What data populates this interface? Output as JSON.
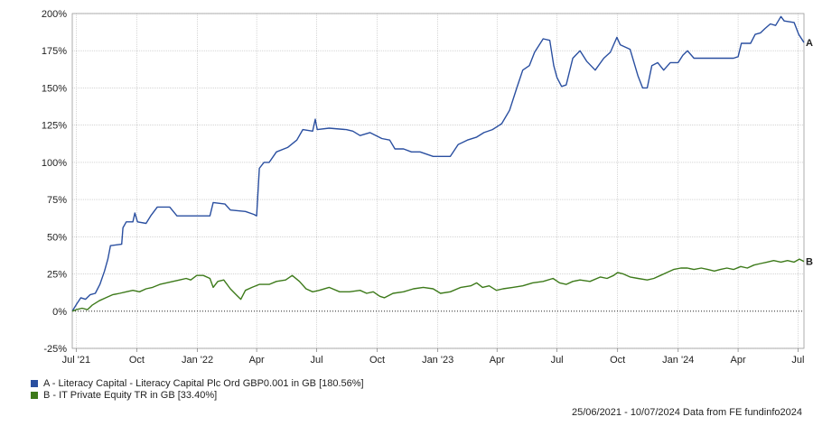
{
  "chart_data": {
    "type": "line",
    "ylim": [
      -25,
      200
    ],
    "y_ticks": [
      -25,
      0,
      25,
      50,
      75,
      100,
      125,
      150,
      175,
      200
    ],
    "y_tick_labels": [
      "-25%",
      "0%",
      "25%",
      "50%",
      "75%",
      "100%",
      "125%",
      "150%",
      "175%",
      "200%"
    ],
    "x_range": [
      "2021-06-25",
      "2024-07-10"
    ],
    "x_ticks": [
      {
        "date": "2021-07-01",
        "label": "Jul '21"
      },
      {
        "date": "2021-10-01",
        "label": "Oct"
      },
      {
        "date": "2022-01-01",
        "label": "Jan '22"
      },
      {
        "date": "2022-04-01",
        "label": "Apr"
      },
      {
        "date": "2022-07-01",
        "label": "Jul"
      },
      {
        "date": "2022-10-01",
        "label": "Oct"
      },
      {
        "date": "2023-01-01",
        "label": "Jan '23"
      },
      {
        "date": "2023-04-01",
        "label": "Apr"
      },
      {
        "date": "2023-07-01",
        "label": "Jul"
      },
      {
        "date": "2023-10-01",
        "label": "Oct"
      },
      {
        "date": "2024-01-01",
        "label": "Jan '24"
      },
      {
        "date": "2024-04-01",
        "label": "Apr"
      },
      {
        "date": "2024-07-01",
        "label": "Jul"
      }
    ],
    "grid": true,
    "zero_line": "dotted",
    "series": [
      {
        "name": "A - Literacy Capital - Literacy Capital Plc Ord GBP0.001 in GB [180.56%]",
        "end_label": "A",
        "color": "#2a4fa0",
        "points": [
          [
            "2021-06-25",
            0
          ],
          [
            "2021-07-02",
            5
          ],
          [
            "2021-07-08",
            9
          ],
          [
            "2021-07-15",
            8
          ],
          [
            "2021-07-22",
            11
          ],
          [
            "2021-07-30",
            12
          ],
          [
            "2021-08-06",
            18
          ],
          [
            "2021-08-13",
            27
          ],
          [
            "2021-08-18",
            35
          ],
          [
            "2021-08-22",
            44
          ],
          [
            "2021-09-08",
            45
          ],
          [
            "2021-09-10",
            56
          ],
          [
            "2021-09-15",
            60
          ],
          [
            "2021-09-25",
            60
          ],
          [
            "2021-09-28",
            66
          ],
          [
            "2021-10-02",
            60
          ],
          [
            "2021-10-15",
            59
          ],
          [
            "2021-10-22",
            64
          ],
          [
            "2021-11-01",
            70
          ],
          [
            "2021-11-20",
            70
          ],
          [
            "2021-12-01",
            64
          ],
          [
            "2021-12-31",
            64
          ],
          [
            "2022-01-20",
            64
          ],
          [
            "2022-01-25",
            73
          ],
          [
            "2022-02-12",
            72
          ],
          [
            "2022-02-20",
            68
          ],
          [
            "2022-03-15",
            67
          ],
          [
            "2022-03-28",
            65
          ],
          [
            "2022-04-01",
            64
          ],
          [
            "2022-04-05",
            96
          ],
          [
            "2022-04-12",
            100
          ],
          [
            "2022-04-20",
            100
          ],
          [
            "2022-05-01",
            107
          ],
          [
            "2022-05-18",
            110
          ],
          [
            "2022-06-01",
            115
          ],
          [
            "2022-06-10",
            122
          ],
          [
            "2022-06-25",
            121
          ],
          [
            "2022-06-29",
            129
          ],
          [
            "2022-07-02",
            122
          ],
          [
            "2022-07-20",
            123
          ],
          [
            "2022-08-15",
            122
          ],
          [
            "2022-08-25",
            121
          ],
          [
            "2022-09-05",
            118
          ],
          [
            "2022-09-20",
            120
          ],
          [
            "2022-10-08",
            116
          ],
          [
            "2022-10-20",
            115
          ],
          [
            "2022-10-28",
            109
          ],
          [
            "2022-11-10",
            109
          ],
          [
            "2022-11-22",
            107
          ],
          [
            "2022-12-05",
            107
          ],
          [
            "2022-12-25",
            104
          ],
          [
            "2023-01-10",
            104
          ],
          [
            "2023-01-20",
            104
          ],
          [
            "2023-02-01",
            112
          ],
          [
            "2023-02-15",
            115
          ],
          [
            "2023-03-01",
            117
          ],
          [
            "2023-03-12",
            120
          ],
          [
            "2023-03-25",
            122
          ],
          [
            "2023-04-01",
            124
          ],
          [
            "2023-04-08",
            126
          ],
          [
            "2023-04-20",
            135
          ],
          [
            "2023-05-01",
            150
          ],
          [
            "2023-05-10",
            162
          ],
          [
            "2023-05-20",
            165
          ],
          [
            "2023-05-28",
            174
          ],
          [
            "2023-06-10",
            183
          ],
          [
            "2023-06-20",
            182
          ],
          [
            "2023-06-26",
            165
          ],
          [
            "2023-07-01",
            157
          ],
          [
            "2023-07-08",
            151
          ],
          [
            "2023-07-15",
            152
          ],
          [
            "2023-07-25",
            170
          ],
          [
            "2023-08-05",
            175
          ],
          [
            "2023-08-15",
            168
          ],
          [
            "2023-08-28",
            162
          ],
          [
            "2023-09-10",
            170
          ],
          [
            "2023-09-20",
            174
          ],
          [
            "2023-09-30",
            184
          ],
          [
            "2023-10-05",
            179
          ],
          [
            "2023-10-20",
            176
          ],
          [
            "2023-11-01",
            158
          ],
          [
            "2023-11-08",
            150
          ],
          [
            "2023-11-15",
            150
          ],
          [
            "2023-11-22",
            165
          ],
          [
            "2023-12-01",
            167
          ],
          [
            "2023-12-10",
            162
          ],
          [
            "2023-12-20",
            167
          ],
          [
            "2024-01-01",
            167
          ],
          [
            "2024-01-08",
            172
          ],
          [
            "2024-01-15",
            175
          ],
          [
            "2024-01-25",
            170
          ],
          [
            "2024-02-10",
            170
          ],
          [
            "2024-03-01",
            170
          ],
          [
            "2024-03-25",
            170
          ],
          [
            "2024-04-01",
            171
          ],
          [
            "2024-04-06",
            180
          ],
          [
            "2024-04-20",
            180
          ],
          [
            "2024-04-27",
            186
          ],
          [
            "2024-05-05",
            187
          ],
          [
            "2024-05-12",
            190
          ],
          [
            "2024-05-20",
            193
          ],
          [
            "2024-05-28",
            192
          ],
          [
            "2024-06-05",
            198
          ],
          [
            "2024-06-10",
            195
          ],
          [
            "2024-06-25",
            194
          ],
          [
            "2024-07-02",
            186
          ],
          [
            "2024-07-10",
            180.56
          ]
        ]
      },
      {
        "name": "B - IT Private Equity TR in GB [33.40%]",
        "end_label": "B",
        "color": "#3d7a1a",
        "points": [
          [
            "2021-06-25",
            0
          ],
          [
            "2021-07-01",
            1
          ],
          [
            "2021-07-10",
            2
          ],
          [
            "2021-07-18",
            1
          ],
          [
            "2021-07-25",
            4
          ],
          [
            "2021-08-05",
            7
          ],
          [
            "2021-08-15",
            9
          ],
          [
            "2021-08-25",
            11
          ],
          [
            "2021-09-05",
            12
          ],
          [
            "2021-09-15",
            13
          ],
          [
            "2021-09-25",
            14
          ],
          [
            "2021-10-05",
            13
          ],
          [
            "2021-10-15",
            15
          ],
          [
            "2021-10-25",
            16
          ],
          [
            "2021-11-05",
            18
          ],
          [
            "2021-11-15",
            19
          ],
          [
            "2021-11-25",
            20
          ],
          [
            "2021-12-05",
            21
          ],
          [
            "2021-12-15",
            22
          ],
          [
            "2021-12-22",
            21
          ],
          [
            "2021-12-31",
            24
          ],
          [
            "2022-01-10",
            24
          ],
          [
            "2022-01-20",
            22
          ],
          [
            "2022-01-25",
            16
          ],
          [
            "2022-02-01",
            20
          ],
          [
            "2022-02-10",
            21
          ],
          [
            "2022-02-20",
            15
          ],
          [
            "2022-03-01",
            11
          ],
          [
            "2022-03-08",
            8
          ],
          [
            "2022-03-15",
            14
          ],
          [
            "2022-03-25",
            16
          ],
          [
            "2022-04-05",
            18
          ],
          [
            "2022-04-20",
            18
          ],
          [
            "2022-05-01",
            20
          ],
          [
            "2022-05-15",
            21
          ],
          [
            "2022-05-25",
            24
          ],
          [
            "2022-06-05",
            20
          ],
          [
            "2022-06-15",
            15
          ],
          [
            "2022-06-25",
            13
          ],
          [
            "2022-07-05",
            14
          ],
          [
            "2022-07-20",
            16
          ],
          [
            "2022-08-05",
            13
          ],
          [
            "2022-08-20",
            13
          ],
          [
            "2022-09-05",
            14
          ],
          [
            "2022-09-15",
            12
          ],
          [
            "2022-09-25",
            13
          ],
          [
            "2022-10-05",
            10
          ],
          [
            "2022-10-12",
            9
          ],
          [
            "2022-10-25",
            12
          ],
          [
            "2022-11-10",
            13
          ],
          [
            "2022-11-25",
            15
          ],
          [
            "2022-12-10",
            16
          ],
          [
            "2022-12-25",
            15
          ],
          [
            "2023-01-05",
            12
          ],
          [
            "2023-01-20",
            13
          ],
          [
            "2023-02-05",
            16
          ],
          [
            "2023-02-20",
            17
          ],
          [
            "2023-03-01",
            19
          ],
          [
            "2023-03-10",
            16
          ],
          [
            "2023-03-20",
            17
          ],
          [
            "2023-03-31",
            14
          ],
          [
            "2023-04-10",
            15
          ],
          [
            "2023-04-25",
            16
          ],
          [
            "2023-05-10",
            17
          ],
          [
            "2023-05-25",
            19
          ],
          [
            "2023-06-10",
            20
          ],
          [
            "2023-06-25",
            22
          ],
          [
            "2023-07-05",
            19
          ],
          [
            "2023-07-15",
            18
          ],
          [
            "2023-07-25",
            20
          ],
          [
            "2023-08-05",
            21
          ],
          [
            "2023-08-20",
            20
          ],
          [
            "2023-09-05",
            23
          ],
          [
            "2023-09-15",
            22
          ],
          [
            "2023-09-25",
            24
          ],
          [
            "2023-10-01",
            26
          ],
          [
            "2023-10-10",
            25
          ],
          [
            "2023-10-20",
            23
          ],
          [
            "2023-11-01",
            22
          ],
          [
            "2023-11-15",
            21
          ],
          [
            "2023-11-25",
            22
          ],
          [
            "2023-12-05",
            24
          ],
          [
            "2023-12-15",
            26
          ],
          [
            "2023-12-25",
            28
          ],
          [
            "2024-01-05",
            29
          ],
          [
            "2024-01-15",
            29
          ],
          [
            "2024-01-25",
            28
          ],
          [
            "2024-02-05",
            29
          ],
          [
            "2024-02-15",
            28
          ],
          [
            "2024-02-25",
            27
          ],
          [
            "2024-03-05",
            28
          ],
          [
            "2024-03-15",
            29
          ],
          [
            "2024-03-25",
            28
          ],
          [
            "2024-04-05",
            30
          ],
          [
            "2024-04-15",
            29
          ],
          [
            "2024-04-25",
            31
          ],
          [
            "2024-05-05",
            32
          ],
          [
            "2024-05-15",
            33
          ],
          [
            "2024-05-25",
            34
          ],
          [
            "2024-06-05",
            33
          ],
          [
            "2024-06-15",
            34
          ],
          [
            "2024-06-25",
            33
          ],
          [
            "2024-07-03",
            35
          ],
          [
            "2024-07-10",
            33.4
          ]
        ]
      }
    ],
    "legend": [
      {
        "label": "A - Literacy Capital - Literacy Capital Plc Ord GBP0.001 in GB [180.56%]",
        "color": "#2a4fa0"
      },
      {
        "label": "B - IT Private Equity TR in GB [33.40%]",
        "color": "#3d7a1a"
      }
    ],
    "footer": "25/06/2021 - 10/07/2024 Data from FE fundinfo2024"
  }
}
